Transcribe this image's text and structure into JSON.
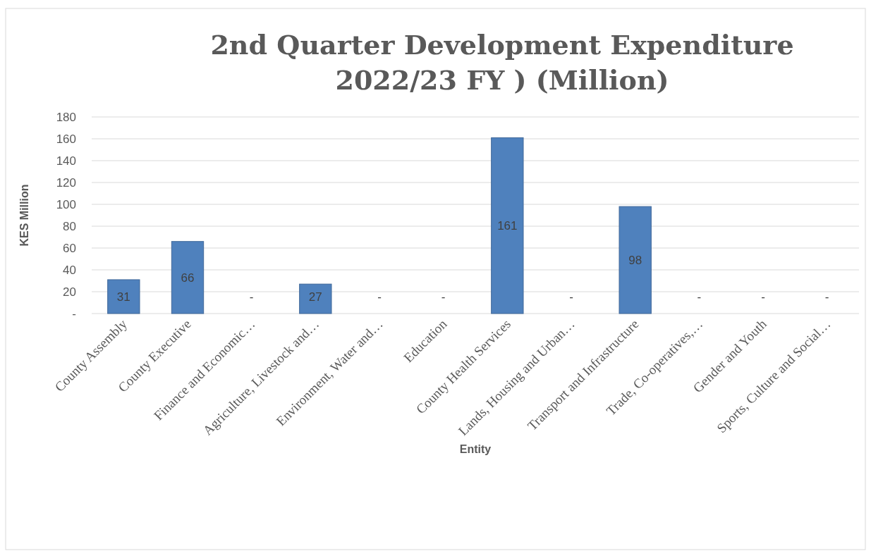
{
  "chart_data": {
    "type": "bar",
    "title": "2nd Quarter Development Expenditure 2022/23 FY ) (Million)",
    "xlabel": "Entity",
    "ylabel": "KES Million",
    "categories": [
      "County Assembly",
      "County Executive",
      "Finance and Economic…",
      "Agriculture, Livestock and…",
      "Environment, Water and…",
      "Education",
      "County Health Services",
      "Lands, Housing and Urban…",
      "Transport and Infrastructure",
      "Trade, Co-operatives,…",
      "Gender and Youth",
      "Sports, Culture and Social…"
    ],
    "values": [
      31,
      66,
      0,
      27,
      0,
      0,
      161,
      0,
      98,
      0,
      0,
      0
    ],
    "value_labels": [
      "31",
      "66",
      "-",
      "27",
      "-",
      "-",
      "161",
      "-",
      "98",
      "-",
      "-",
      "-"
    ],
    "color": "#4f81bd",
    "ylim": [
      0,
      180
    ],
    "yticks": [
      {
        "value": 0,
        "label": "-"
      },
      20,
      40,
      60,
      80,
      100,
      120,
      140,
      160,
      180
    ],
    "grid": "y"
  }
}
